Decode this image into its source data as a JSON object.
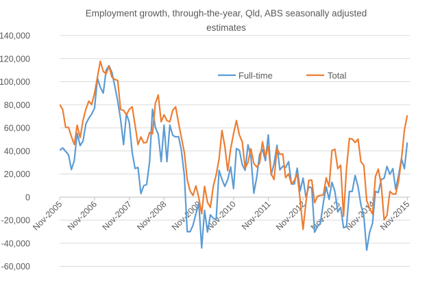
{
  "chart_data": {
    "type": "line",
    "title": [
      "Employment growth, through-the-year, Qld, ABS seasonally adjusted",
      "estimates"
    ],
    "xlabel": "",
    "ylabel": "",
    "ylim": [
      -60000,
      140000
    ],
    "y_ticks": [
      "-60,000",
      "-40,000",
      "-20,000",
      "0",
      "20,000",
      "40,000",
      "60,000",
      "80,000",
      "100,000",
      "120,000",
      "140,000"
    ],
    "x_tick_labels": [
      "Nov-2005",
      "Nov-2006",
      "Nov-2007",
      "Nov-2008",
      "Nov-2009",
      "Nov-2010",
      "Nov-2011",
      "Nov-2012",
      "Nov-2013",
      "Nov-2014",
      "Nov-2015"
    ],
    "grid": "horizontal",
    "legend_position": "top-right",
    "categories": [
      "Nov-2005",
      "Dec-2005",
      "Jan-2006",
      "Feb-2006",
      "Mar-2006",
      "Apr-2006",
      "May-2006",
      "Jun-2006",
      "Jul-2006",
      "Aug-2006",
      "Sep-2006",
      "Oct-2006",
      "Nov-2006",
      "Dec-2006",
      "Jan-2007",
      "Feb-2007",
      "Mar-2007",
      "Apr-2007",
      "May-2007",
      "Jun-2007",
      "Jul-2007",
      "Aug-2007",
      "Sep-2007",
      "Oct-2007",
      "Nov-2007",
      "Dec-2007",
      "Jan-2008",
      "Feb-2008",
      "Mar-2008",
      "Apr-2008",
      "May-2008",
      "Jun-2008",
      "Jul-2008",
      "Aug-2008",
      "Sep-2008",
      "Oct-2008",
      "Nov-2008",
      "Dec-2008",
      "Jan-2009",
      "Feb-2009",
      "Mar-2009",
      "Apr-2009",
      "May-2009",
      "Jun-2009",
      "Jul-2009",
      "Aug-2009",
      "Sep-2009",
      "Oct-2009",
      "Nov-2009",
      "Dec-2009",
      "Jan-2010",
      "Feb-2010",
      "Mar-2010",
      "Apr-2010",
      "May-2010",
      "Jun-2010",
      "Jul-2010",
      "Aug-2010",
      "Sep-2010",
      "Oct-2010",
      "Nov-2010",
      "Dec-2010",
      "Jan-2011",
      "Feb-2011",
      "Mar-2011",
      "Apr-2011",
      "May-2011",
      "Jun-2011",
      "Jul-2011",
      "Aug-2011",
      "Sep-2011",
      "Oct-2011",
      "Nov-2011",
      "Dec-2011",
      "Jan-2012",
      "Feb-2012",
      "Mar-2012",
      "Apr-2012",
      "May-2012",
      "Jun-2012",
      "Jul-2012",
      "Aug-2012",
      "Sep-2012",
      "Oct-2012",
      "Nov-2012",
      "Dec-2012",
      "Jan-2013",
      "Feb-2013",
      "Mar-2013",
      "Apr-2013",
      "May-2013",
      "Jun-2013",
      "Jul-2013",
      "Aug-2013",
      "Sep-2013",
      "Oct-2013",
      "Nov-2013",
      "Dec-2013",
      "Jan-2014",
      "Feb-2014",
      "Mar-2014",
      "Apr-2014",
      "May-2014",
      "Jun-2014",
      "Jul-2014",
      "Aug-2014",
      "Sep-2014",
      "Oct-2014",
      "Nov-2014",
      "Dec-2014",
      "Jan-2015",
      "Feb-2015",
      "Mar-2015",
      "Apr-2015",
      "May-2015",
      "Jun-2015",
      "Jul-2015",
      "Aug-2015",
      "Sep-2015",
      "Oct-2015",
      "Nov-2015"
    ],
    "series": [
      {
        "name": "Full-time",
        "color": "#5B9BD5",
        "values": [
          40600,
          42600,
          39600,
          36600,
          23800,
          31700,
          55400,
          44600,
          48500,
          63400,
          68300,
          71900,
          77200,
          103000,
          95000,
          90100,
          110000,
          113900,
          108000,
          96000,
          83200,
          67300,
          45500,
          72300,
          64400,
          38600,
          24800,
          25700,
          3000,
          9900,
          10900,
          30700,
          76200,
          60400,
          54500,
          30700,
          62400,
          30700,
          62400,
          53500,
          52100,
          52500,
          40600,
          18800,
          -30000,
          -30000,
          -24400,
          -14500,
          -5500,
          -44100,
          -11500,
          -30300,
          -15400,
          -18400,
          -19400,
          23200,
          15200,
          9300,
          15200,
          26100,
          7300,
          42000,
          40600,
          28100,
          23200,
          45300,
          35000,
          3400,
          17200,
          37000,
          41400,
          31500,
          53900,
          19200,
          29100,
          44900,
          23600,
          26700,
          25700,
          30700,
          11300,
          11300,
          25100,
          5300,
          16400,
          0,
          8900,
          7900,
          -30500,
          -25600,
          -22700,
          -4900,
          8900,
          -2000,
          12800,
          4900,
          -12800,
          -8900,
          -26600,
          -25600,
          4900,
          4900,
          18700,
          8900,
          -6900,
          -16700,
          -46000,
          -30500,
          -22700,
          4900,
          3900,
          15200,
          16400,
          26600,
          19700,
          24600,
          6900,
          18700,
          33500,
          24600,
          47300
        ]
      },
      {
        "name": "Total",
        "color": "#ED7D31",
        "values": [
          80200,
          75800,
          60400,
          60400,
          52500,
          45500,
          62400,
          51500,
          66300,
          76200,
          83200,
          80200,
          90100,
          104000,
          117800,
          108900,
          106900,
          113500,
          104000,
          102000,
          101000,
          75800,
          75200,
          71300,
          76200,
          78200,
          62400,
          45500,
          52100,
          46900,
          47500,
          56000,
          54800,
          81200,
          88500,
          65300,
          71300,
          66300,
          65300,
          75200,
          78200,
          64400,
          51500,
          38600,
          15200,
          5300,
          1400,
          9700,
          -600,
          -14500,
          9300,
          -4600,
          -8900,
          9300,
          19200,
          33100,
          57800,
          44000,
          22800,
          42000,
          54900,
          66300,
          53900,
          47900,
          25100,
          30100,
          42000,
          29100,
          26100,
          29100,
          47900,
          35000,
          44000,
          20200,
          15200,
          42000,
          37000,
          37400,
          16800,
          20200,
          11300,
          14300,
          20200,
          -2600,
          -28000,
          -4900,
          14400,
          14800,
          -4900,
          600,
          1600,
          1800,
          16700,
          8900,
          40400,
          41400,
          24600,
          27600,
          -16700,
          24600,
          50800,
          50200,
          47300,
          50200,
          30500,
          27600,
          -3000,
          -9900,
          -14800,
          17700,
          24200,
          10800,
          -19700,
          -15800,
          4900,
          2600,
          2600,
          13800,
          32500,
          58100,
          70900
        ]
      }
    ]
  }
}
